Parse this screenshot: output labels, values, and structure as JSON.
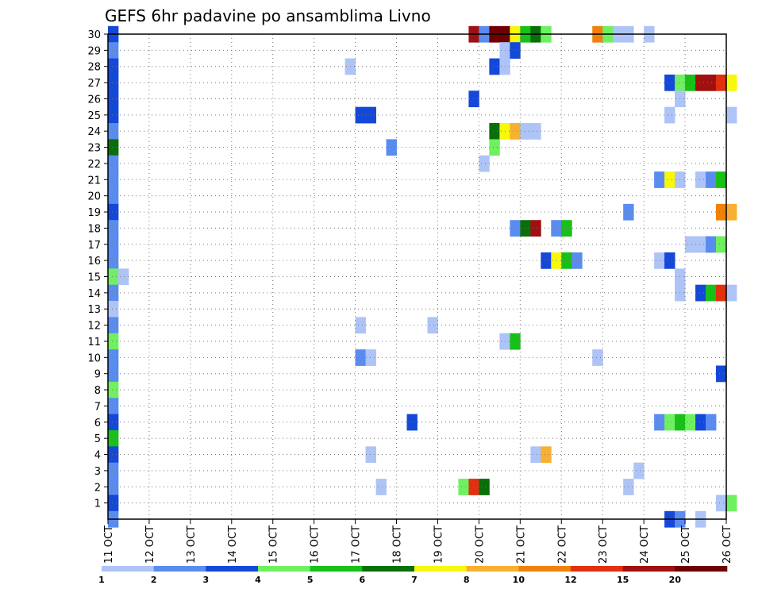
{
  "chart_data": {
    "type": "heatmap",
    "title": "GEFS 6hr padavine po ansamblima Livno",
    "y_tick_labels": [
      "1",
      "2",
      "3",
      "4",
      "5",
      "6",
      "7",
      "8",
      "9",
      "10",
      "11",
      "12",
      "13",
      "14",
      "15",
      "16",
      "17",
      "18",
      "19",
      "20",
      "21",
      "22",
      "23",
      "24",
      "25",
      "26",
      "27",
      "28",
      "29",
      "30"
    ],
    "x_tick_labels": [
      "11 OCT",
      "12 OCT",
      "13 OCT",
      "14 OCT",
      "15 OCT",
      "16 OCT",
      "17 OCT",
      "18 OCT",
      "19 OCT",
      "20 OCT",
      "21 OCT",
      "22 OCT",
      "23 OCT",
      "24 OCT",
      "25 OCT",
      "26 OCT"
    ],
    "x_range_days": [
      11,
      26
    ],
    "y_range_members": [
      0,
      30
    ],
    "grid": true,
    "colorbar": {
      "labels": [
        "1",
        "2",
        "3",
        "4",
        "5",
        "6",
        "7",
        "8",
        "10",
        "12",
        "15",
        "20"
      ],
      "colors": [
        "#aec4f7",
        "#5a8cf0",
        "#1448d8",
        "#6ef060",
        "#18c018",
        "#0a6e0a",
        "#f8f80a",
        "#f8b030",
        "#f0820a",
        "#e03010",
        "#a01010",
        "#6e0000"
      ]
    },
    "cells": [
      {
        "m": 30,
        "t": 0,
        "c": 2
      },
      {
        "m": 29,
        "t": 0,
        "c": 1
      },
      {
        "m": 28,
        "t": 0,
        "c": 2
      },
      {
        "m": 27,
        "t": 0,
        "c": 2
      },
      {
        "m": 26,
        "t": 0,
        "c": 2
      },
      {
        "m": 25,
        "t": 0,
        "c": 2
      },
      {
        "m": 24,
        "t": 0,
        "c": 1
      },
      {
        "m": 23,
        "t": 0,
        "c": 5
      },
      {
        "m": 22,
        "t": 0,
        "c": 1
      },
      {
        "m": 21,
        "t": 0,
        "c": 1
      },
      {
        "m": 20,
        "t": 0,
        "c": 1
      },
      {
        "m": 19,
        "t": 0,
        "c": 2
      },
      {
        "m": 18,
        "t": 0,
        "c": 1
      },
      {
        "m": 17,
        "t": 0,
        "c": 1
      },
      {
        "m": 16,
        "t": 0,
        "c": 1
      },
      {
        "m": 15,
        "t": 0,
        "c": 3
      },
      {
        "m": 14,
        "t": 0,
        "c": 1
      },
      {
        "m": 13,
        "t": 0,
        "c": 0
      },
      {
        "m": 12,
        "t": 0,
        "c": 1
      },
      {
        "m": 11,
        "t": 0,
        "c": 3
      },
      {
        "m": 10,
        "t": 0,
        "c": 1
      },
      {
        "m": 9,
        "t": 0,
        "c": 1
      },
      {
        "m": 8,
        "t": 0,
        "c": 3
      },
      {
        "m": 7,
        "t": 0,
        "c": 1
      },
      {
        "m": 6,
        "t": 0,
        "c": 2
      },
      {
        "m": 5,
        "t": 0,
        "c": 4
      },
      {
        "m": 4,
        "t": 0,
        "c": 2
      },
      {
        "m": 3,
        "t": 0,
        "c": 1
      },
      {
        "m": 2,
        "t": 0,
        "c": 1
      },
      {
        "m": 1,
        "t": 0,
        "c": 2
      },
      {
        "m": 0,
        "t": 0,
        "c": 1
      },
      {
        "m": 15,
        "t": 1,
        "c": 0
      },
      {
        "m": 30,
        "t": 35,
        "c": 10
      },
      {
        "m": 30,
        "t": 36,
        "c": 1
      },
      {
        "m": 30,
        "t": 37,
        "c": 11
      },
      {
        "m": 30,
        "t": 38,
        "c": 11
      },
      {
        "m": 30,
        "t": 39,
        "c": 6
      },
      {
        "m": 30,
        "t": 40,
        "c": 4
      },
      {
        "m": 30,
        "t": 41,
        "c": 5
      },
      {
        "m": 30,
        "t": 42,
        "c": 3
      },
      {
        "m": 30,
        "t": 47,
        "c": 8
      },
      {
        "m": 30,
        "t": 48,
        "c": 3
      },
      {
        "m": 30,
        "t": 49,
        "c": 0
      },
      {
        "m": 30,
        "t": 50,
        "c": 0
      },
      {
        "m": 30,
        "t": 52,
        "c": 0
      },
      {
        "m": 29,
        "t": 38,
        "c": 0
      },
      {
        "m": 29,
        "t": 39,
        "c": 2
      },
      {
        "m": 28,
        "t": 23,
        "c": 0
      },
      {
        "m": 28,
        "t": 37,
        "c": 2
      },
      {
        "m": 28,
        "t": 38,
        "c": 0
      },
      {
        "m": 27,
        "t": 54,
        "c": 2
      },
      {
        "m": 27,
        "t": 55,
        "c": 3
      },
      {
        "m": 27,
        "t": 56,
        "c": 4
      },
      {
        "m": 27,
        "t": 57,
        "c": 10
      },
      {
        "m": 27,
        "t": 58,
        "c": 10
      },
      {
        "m": 27,
        "t": 59,
        "c": 9
      },
      {
        "m": 27,
        "t": 60,
        "c": 6
      },
      {
        "m": 26,
        "t": 35,
        "c": 2
      },
      {
        "m": 26,
        "t": 55,
        "c": 0
      },
      {
        "m": 25,
        "t": 24,
        "c": 2
      },
      {
        "m": 25,
        "t": 25,
        "c": 2
      },
      {
        "m": 25,
        "t": 54,
        "c": 0
      },
      {
        "m": 25,
        "t": 60,
        "c": 0
      },
      {
        "m": 24,
        "t": 37,
        "c": 5
      },
      {
        "m": 24,
        "t": 38,
        "c": 6
      },
      {
        "m": 24,
        "t": 39,
        "c": 7
      },
      {
        "m": 24,
        "t": 40,
        "c": 0
      },
      {
        "m": 24,
        "t": 41,
        "c": 0
      },
      {
        "m": 23,
        "t": 27,
        "c": 1
      },
      {
        "m": 23,
        "t": 37,
        "c": 3
      },
      {
        "m": 22,
        "t": 36,
        "c": 0
      },
      {
        "m": 21,
        "t": 53,
        "c": 1
      },
      {
        "m": 21,
        "t": 54,
        "c": 6
      },
      {
        "m": 21,
        "t": 55,
        "c": 0
      },
      {
        "m": 21,
        "t": 57,
        "c": 0
      },
      {
        "m": 21,
        "t": 58,
        "c": 1
      },
      {
        "m": 21,
        "t": 59,
        "c": 4
      },
      {
        "m": 19,
        "t": 50,
        "c": 1
      },
      {
        "m": 19,
        "t": 59,
        "c": 8
      },
      {
        "m": 19,
        "t": 60,
        "c": 7
      },
      {
        "m": 18,
        "t": 39,
        "c": 1
      },
      {
        "m": 18,
        "t": 40,
        "c": 5
      },
      {
        "m": 18,
        "t": 41,
        "c": 10
      },
      {
        "m": 18,
        "t": 43,
        "c": 1
      },
      {
        "m": 18,
        "t": 44,
        "c": 4
      },
      {
        "m": 17,
        "t": 56,
        "c": 0
      },
      {
        "m": 17,
        "t": 57,
        "c": 0
      },
      {
        "m": 17,
        "t": 58,
        "c": 1
      },
      {
        "m": 17,
        "t": 59,
        "c": 3
      },
      {
        "m": 16,
        "t": 42,
        "c": 2
      },
      {
        "m": 16,
        "t": 43,
        "c": 6
      },
      {
        "m": 16,
        "t": 44,
        "c": 4
      },
      {
        "m": 16,
        "t": 45,
        "c": 1
      },
      {
        "m": 16,
        "t": 53,
        "c": 0
      },
      {
        "m": 16,
        "t": 54,
        "c": 2
      },
      {
        "m": 15,
        "t": 55,
        "c": 0
      },
      {
        "m": 14,
        "t": 55,
        "c": 0
      },
      {
        "m": 14,
        "t": 57,
        "c": 2
      },
      {
        "m": 14,
        "t": 58,
        "c": 4
      },
      {
        "m": 14,
        "t": 59,
        "c": 9
      },
      {
        "m": 14,
        "t": 60,
        "c": 0
      },
      {
        "m": 12,
        "t": 24,
        "c": 0
      },
      {
        "m": 12,
        "t": 31,
        "c": 0
      },
      {
        "m": 11,
        "t": 38,
        "c": 0
      },
      {
        "m": 11,
        "t": 39,
        "c": 4
      },
      {
        "m": 10,
        "t": 24,
        "c": 1
      },
      {
        "m": 10,
        "t": 25,
        "c": 0
      },
      {
        "m": 10,
        "t": 47,
        "c": 0
      },
      {
        "m": 9,
        "t": 59,
        "c": 2
      },
      {
        "m": 6,
        "t": 29,
        "c": 2
      },
      {
        "m": 6,
        "t": 53,
        "c": 1
      },
      {
        "m": 6,
        "t": 54,
        "c": 3
      },
      {
        "m": 6,
        "t": 55,
        "c": 4
      },
      {
        "m": 6,
        "t": 56,
        "c": 3
      },
      {
        "m": 6,
        "t": 57,
        "c": 2
      },
      {
        "m": 6,
        "t": 58,
        "c": 1
      },
      {
        "m": 4,
        "t": 25,
        "c": 0
      },
      {
        "m": 4,
        "t": 41,
        "c": 0
      },
      {
        "m": 4,
        "t": 42,
        "c": 7
      },
      {
        "m": 3,
        "t": 51,
        "c": 0
      },
      {
        "m": 2,
        "t": 26,
        "c": 0
      },
      {
        "m": 2,
        "t": 34,
        "c": 3
      },
      {
        "m": 2,
        "t": 35,
        "c": 9
      },
      {
        "m": 2,
        "t": 36,
        "c": 5
      },
      {
        "m": 2,
        "t": 50,
        "c": 0
      },
      {
        "m": 1,
        "t": 59,
        "c": 0
      },
      {
        "m": 1,
        "t": 60,
        "c": 3
      },
      {
        "m": 0,
        "t": 54,
        "c": 2
      },
      {
        "m": 0,
        "t": 55,
        "c": 1
      },
      {
        "m": 0,
        "t": 57,
        "c": 0
      }
    ]
  }
}
